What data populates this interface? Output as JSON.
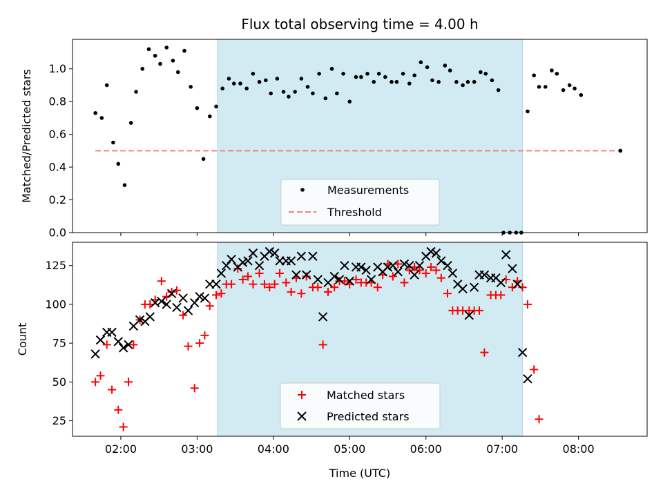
{
  "title": "Flux total observing time = 4.00 h",
  "colors": {
    "shade": "#add8e6",
    "measurements": "#000000",
    "threshold": "#f08080",
    "matched": "#ff0000",
    "predicted": "#000000"
  },
  "chart_data": [
    {
      "type": "scatter",
      "ylabel": "Matched/Predicted stars",
      "ylim": [
        0.0,
        1.18
      ],
      "yticks": [
        "0.0",
        "0.2",
        "0.4",
        "0.6",
        "0.8",
        "1.0"
      ],
      "ytick_values": [
        0.0,
        0.2,
        0.4,
        0.6,
        0.8,
        1.0
      ],
      "xlim": [
        "01:22",
        "08:54"
      ],
      "shaded_span": [
        "03:16",
        "07:16"
      ],
      "legend": {
        "placement": "lower-center",
        "entries": [
          "Measurements",
          "Threshold"
        ]
      },
      "threshold": {
        "name": "Threshold",
        "value": 0.5,
        "x": [
          "01:40",
          "08:33"
        ]
      },
      "series": [
        {
          "name": "Measurements",
          "marker": "dot",
          "points": [
            [
              "01:40",
              0.73
            ],
            [
              "01:45",
              0.7
            ],
            [
              "01:49",
              0.9
            ],
            [
              "01:54",
              0.55
            ],
            [
              "01:58",
              0.42
            ],
            [
              "02:03",
              0.29
            ],
            [
              "02:08",
              0.67
            ],
            [
              "02:12",
              0.86
            ],
            [
              "02:17",
              1.0
            ],
            [
              "02:22",
              1.12
            ],
            [
              "02:27",
              1.08
            ],
            [
              "02:31",
              1.03
            ],
            [
              "02:36",
              1.13
            ],
            [
              "02:41",
              1.05
            ],
            [
              "02:45",
              0.98
            ],
            [
              "02:50",
              1.11
            ],
            [
              "02:55",
              0.89
            ],
            [
              "03:00",
              0.76
            ],
            [
              "03:05",
              0.45
            ],
            [
              "03:10",
              0.71
            ],
            [
              "03:15",
              0.77
            ],
            [
              "03:20",
              0.88
            ],
            [
              "03:25",
              0.94
            ],
            [
              "03:29",
              0.91
            ],
            [
              "03:34",
              0.91
            ],
            [
              "03:39",
              0.88
            ],
            [
              "03:44",
              0.97
            ],
            [
              "03:49",
              0.92
            ],
            [
              "03:54",
              0.93
            ],
            [
              "03:58",
              0.85
            ],
            [
              "04:03",
              0.94
            ],
            [
              "04:08",
              0.86
            ],
            [
              "04:12",
              0.83
            ],
            [
              "04:17",
              0.86
            ],
            [
              "04:22",
              0.94
            ],
            [
              "04:27",
              0.89
            ],
            [
              "04:31",
              0.85
            ],
            [
              "04:36",
              0.97
            ],
            [
              "04:41",
              0.82
            ],
            [
              "04:46",
              1.0
            ],
            [
              "04:50",
              0.85
            ],
            [
              "04:55",
              0.97
            ],
            [
              "05:00",
              0.8
            ],
            [
              "05:05",
              0.95
            ],
            [
              "05:09",
              0.95
            ],
            [
              "05:14",
              0.97
            ],
            [
              "05:19",
              0.92
            ],
            [
              "05:23",
              0.97
            ],
            [
              "05:28",
              0.95
            ],
            [
              "05:33",
              0.92
            ],
            [
              "05:37",
              0.92
            ],
            [
              "05:42",
              0.97
            ],
            [
              "05:47",
              0.91
            ],
            [
              "05:51",
              0.96
            ],
            [
              "05:56",
              1.04
            ],
            [
              "06:01",
              1.01
            ],
            [
              "06:05",
              0.93
            ],
            [
              "06:10",
              0.92
            ],
            [
              "06:15",
              1.02
            ],
            [
              "06:19",
              0.99
            ],
            [
              "06:24",
              0.92
            ],
            [
              "06:29",
              0.9
            ],
            [
              "06:33",
              0.92
            ],
            [
              "06:38",
              0.92
            ],
            [
              "06:43",
              0.98
            ],
            [
              "06:47",
              0.97
            ],
            [
              "06:52",
              0.93
            ],
            [
              "06:57",
              0.87
            ],
            [
              "07:01",
              0.0
            ],
            [
              "07:06",
              0.0
            ],
            [
              "07:11",
              0.0
            ],
            [
              "07:15",
              0.0
            ],
            [
              "07:20",
              0.74
            ],
            [
              "07:25",
              0.96
            ],
            [
              "07:29",
              0.89
            ],
            [
              "07:34",
              0.89
            ],
            [
              "07:39",
              0.99
            ],
            [
              "07:43",
              0.97
            ],
            [
              "07:48",
              0.87
            ],
            [
              "07:53",
              0.9
            ],
            [
              "07:57",
              0.88
            ],
            [
              "08:02",
              0.84
            ],
            [
              "08:33",
              0.5
            ]
          ]
        }
      ]
    },
    {
      "type": "scatter",
      "ylabel": "Count",
      "xlabel": "Time (UTC)",
      "ylim": [
        15,
        140
      ],
      "yticks": [
        "25",
        "50",
        "75",
        "100",
        "125"
      ],
      "ytick_values": [
        25,
        50,
        75,
        100,
        125
      ],
      "xlim": [
        "01:22",
        "08:54"
      ],
      "xticks": [
        "02:00",
        "03:00",
        "04:00",
        "05:00",
        "06:00",
        "07:00",
        "08:00"
      ],
      "shaded_span": [
        "03:16",
        "07:16"
      ],
      "legend": {
        "placement": "lower-center",
        "entries": [
          "Matched stars",
          "Predicted stars"
        ]
      },
      "series": [
        {
          "name": "Matched stars",
          "marker": "plus",
          "points": [
            [
              "01:40",
              50
            ],
            [
              "01:44",
              54
            ],
            [
              "01:49",
              74
            ],
            [
              "01:53",
              45
            ],
            [
              "01:58",
              32
            ],
            [
              "02:02",
              21
            ],
            [
              "02:06",
              50
            ],
            [
              "02:10",
              74
            ],
            [
              "02:15",
              90
            ],
            [
              "02:19",
              100
            ],
            [
              "02:23",
              100
            ],
            [
              "02:27",
              103
            ],
            [
              "02:32",
              115
            ],
            [
              "02:36",
              105
            ],
            [
              "02:40",
              108
            ],
            [
              "02:44",
              109
            ],
            [
              "02:49",
              93
            ],
            [
              "02:53",
              73
            ],
            [
              "02:58",
              46
            ],
            [
              "03:02",
              75
            ],
            [
              "03:06",
              80
            ],
            [
              "03:10",
              99
            ],
            [
              "03:15",
              106
            ],
            [
              "03:19",
              107
            ],
            [
              "03:23",
              113
            ],
            [
              "03:27",
              113
            ],
            [
              "03:32",
              123
            ],
            [
              "03:36",
              116
            ],
            [
              "03:40",
              118
            ],
            [
              "03:44",
              113
            ],
            [
              "03:49",
              120
            ],
            [
              "03:53",
              113
            ],
            [
              "03:57",
              111
            ],
            [
              "04:01",
              113
            ],
            [
              "04:05",
              120
            ],
            [
              "04:10",
              114
            ],
            [
              "04:14",
              108
            ],
            [
              "04:18",
              117
            ],
            [
              "04:22",
              107
            ],
            [
              "04:26",
              118
            ],
            [
              "04:31",
              111
            ],
            [
              "04:35",
              111
            ],
            [
              "04:39",
              74
            ],
            [
              "04:43",
              108
            ],
            [
              "04:48",
              111
            ],
            [
              "04:52",
              115
            ],
            [
              "04:56",
              115
            ],
            [
              "05:00",
              113
            ],
            [
              "05:05",
              116
            ],
            [
              "05:09",
              114
            ],
            [
              "05:13",
              114
            ],
            [
              "05:17",
              114
            ],
            [
              "05:22",
              111
            ],
            [
              "05:26",
              119
            ],
            [
              "05:30",
              126
            ],
            [
              "05:34",
              118
            ],
            [
              "05:38",
              126
            ],
            [
              "05:43",
              114
            ],
            [
              "05:47",
              122
            ],
            [
              "05:51",
              124
            ],
            [
              "05:55",
              122
            ],
            [
              "06:00",
              120
            ],
            [
              "06:04",
              124
            ],
            [
              "06:08",
              122
            ],
            [
              "06:12",
              117
            ],
            [
              "06:17",
              107
            ],
            [
              "06:21",
              96
            ],
            [
              "06:25",
              96
            ],
            [
              "06:29",
              96
            ],
            [
              "06:34",
              96
            ],
            [
              "06:38",
              96
            ],
            [
              "06:42",
              96
            ],
            [
              "06:46",
              69
            ],
            [
              "06:51",
              106
            ],
            [
              "06:55",
              106
            ],
            [
              "06:59",
              106
            ],
            [
              "07:03",
              116
            ],
            [
              "07:08",
              111
            ],
            [
              "07:12",
              115
            ],
            [
              "07:16",
              111
            ],
            [
              "07:20",
              100
            ],
            [
              "07:25",
              58
            ],
            [
              "07:29",
              26
            ]
          ]
        },
        {
          "name": "Predicted stars",
          "marker": "x",
          "points": [
            [
              "01:40",
              68
            ],
            [
              "01:44",
              77
            ],
            [
              "01:49",
              82
            ],
            [
              "01:53",
              82
            ],
            [
              "01:58",
              76
            ],
            [
              "02:02",
              72
            ],
            [
              "02:06",
              74
            ],
            [
              "02:10",
              86
            ],
            [
              "02:15",
              90
            ],
            [
              "02:19",
              89
            ],
            [
              "02:23",
              92
            ],
            [
              "02:27",
              101
            ],
            [
              "02:32",
              102
            ],
            [
              "02:36",
              100
            ],
            [
              "02:40",
              107
            ],
            [
              "02:44",
              98
            ],
            [
              "02:49",
              104
            ],
            [
              "02:53",
              96
            ],
            [
              "02:58",
              101
            ],
            [
              "03:02",
              105
            ],
            [
              "03:06",
              104
            ],
            [
              "03:10",
              113
            ],
            [
              "03:15",
              113
            ],
            [
              "03:19",
              120
            ],
            [
              "03:23",
              125
            ],
            [
              "03:27",
              129
            ],
            [
              "03:32",
              124
            ],
            [
              "03:36",
              127
            ],
            [
              "03:40",
              128
            ],
            [
              "03:44",
              133
            ],
            [
              "03:49",
              125
            ],
            [
              "03:53",
              131
            ],
            [
              "03:57",
              134
            ],
            [
              "04:01",
              133
            ],
            [
              "04:05",
              128
            ],
            [
              "04:10",
              128
            ],
            [
              "04:14",
              128
            ],
            [
              "04:18",
              119
            ],
            [
              "04:22",
              131
            ],
            [
              "04:26",
              119
            ],
            [
              "04:31",
              131
            ],
            [
              "04:35",
              116
            ],
            [
              "04:39",
              92
            ],
            [
              "04:43",
              114
            ],
            [
              "04:48",
              118
            ],
            [
              "04:52",
              116
            ],
            [
              "04:56",
              125
            ],
            [
              "05:00",
              115
            ],
            [
              "05:05",
              124
            ],
            [
              "05:09",
              124
            ],
            [
              "05:13",
              122
            ],
            [
              "05:17",
              116
            ],
            [
              "05:22",
              124
            ],
            [
              "05:26",
              121
            ],
            [
              "05:30",
              124
            ],
            [
              "05:34",
              125
            ],
            [
              "05:38",
              121
            ],
            [
              "05:43",
              126
            ],
            [
              "05:47",
              125
            ],
            [
              "05:51",
              119
            ],
            [
              "05:55",
              125
            ],
            [
              "06:00",
              131
            ],
            [
              "06:04",
              134
            ],
            [
              "06:08",
              133
            ],
            [
              "06:12",
              128
            ],
            [
              "06:17",
              125
            ],
            [
              "06:21",
              120
            ],
            [
              "06:25",
              113
            ],
            [
              "06:29",
              110
            ],
            [
              "06:34",
              93
            ],
            [
              "06:38",
              111
            ],
            [
              "06:42",
              119
            ],
            [
              "06:46",
              119
            ],
            [
              "06:51",
              117
            ],
            [
              "06:55",
              117
            ],
            [
              "06:59",
              114
            ],
            [
              "07:03",
              132
            ],
            [
              "07:08",
              123
            ],
            [
              "07:12",
              113
            ],
            [
              "07:16",
              69
            ],
            [
              "07:20",
              52
            ]
          ]
        }
      ]
    }
  ]
}
